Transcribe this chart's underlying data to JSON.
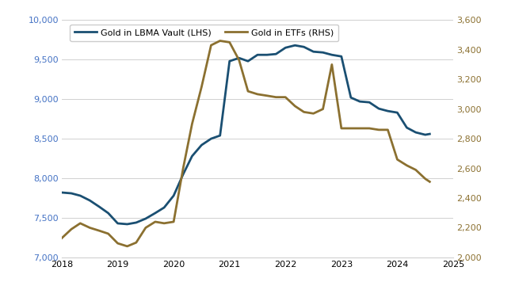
{
  "lbma_x": [
    2018.0,
    2018.17,
    2018.33,
    2018.5,
    2018.67,
    2018.83,
    2019.0,
    2019.17,
    2019.33,
    2019.5,
    2019.67,
    2019.83,
    2020.0,
    2020.17,
    2020.33,
    2020.5,
    2020.67,
    2020.83,
    2021.0,
    2021.17,
    2021.33,
    2021.5,
    2021.67,
    2021.83,
    2022.0,
    2022.17,
    2022.33,
    2022.5,
    2022.67,
    2022.83,
    2023.0,
    2023.17,
    2023.33,
    2023.5,
    2023.67,
    2023.83,
    2024.0,
    2024.17,
    2024.33,
    2024.5,
    2024.58
  ],
  "lbma_y": [
    7820,
    7810,
    7780,
    7720,
    7640,
    7560,
    7430,
    7420,
    7440,
    7490,
    7560,
    7630,
    7780,
    8050,
    8280,
    8420,
    8500,
    8540,
    9480,
    9520,
    9480,
    9560,
    9560,
    9570,
    9650,
    9680,
    9660,
    9600,
    9590,
    9560,
    9540,
    9020,
    8970,
    8960,
    8880,
    8850,
    8830,
    8640,
    8580,
    8550,
    8560
  ],
  "etf_x": [
    2018.0,
    2018.17,
    2018.33,
    2018.5,
    2018.67,
    2018.83,
    2019.0,
    2019.17,
    2019.33,
    2019.5,
    2019.67,
    2019.83,
    2020.0,
    2020.17,
    2020.33,
    2020.5,
    2020.67,
    2020.83,
    2021.0,
    2021.17,
    2021.33,
    2021.5,
    2021.67,
    2021.83,
    2022.0,
    2022.17,
    2022.33,
    2022.5,
    2022.67,
    2022.83,
    2023.0,
    2023.17,
    2023.33,
    2023.5,
    2023.67,
    2023.83,
    2024.0,
    2024.17,
    2024.33,
    2024.5,
    2024.58
  ],
  "etf_y": [
    2130,
    2190,
    2230,
    2200,
    2180,
    2160,
    2095,
    2075,
    2100,
    2200,
    2240,
    2230,
    2240,
    2600,
    2900,
    3150,
    3430,
    3460,
    3450,
    3330,
    3120,
    3100,
    3090,
    3080,
    3080,
    3020,
    2980,
    2970,
    3000,
    3300,
    2870,
    2870,
    2870,
    2870,
    2860,
    2860,
    2660,
    2620,
    2590,
    2530,
    2510
  ],
  "lbma_color": "#1a4f72",
  "etf_color": "#8B7030",
  "lhs_ylim": [
    7000,
    10000
  ],
  "rhs_ylim": [
    2000,
    3600
  ],
  "lhs_yticks": [
    7000,
    7500,
    8000,
    8500,
    9000,
    9500,
    10000
  ],
  "rhs_yticks": [
    2000,
    2200,
    2400,
    2600,
    2800,
    3000,
    3200,
    3400,
    3600
  ],
  "xticks": [
    2018,
    2019,
    2020,
    2021,
    2022,
    2023,
    2024,
    2025
  ],
  "lbma_label": "Gold in LBMA Vault (LHS)",
  "etf_label": "Gold in ETFs (RHS)",
  "lhs_tick_color": "#4472C4",
  "rhs_tick_color": "#8B7030",
  "background_color": "#ffffff",
  "grid_color": "#d0d0d0",
  "linewidth": 2.0
}
